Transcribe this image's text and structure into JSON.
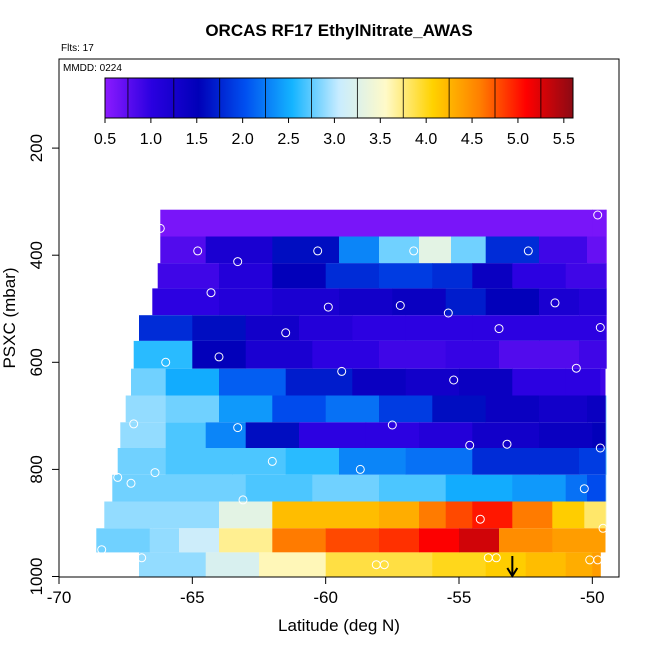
{
  "chart_data": {
    "type": "heatmap",
    "title": "ORCAS RF17 EthylNitrate_AWAS",
    "flights_label": "Flts: 17",
    "date_label": "MMDD: 0224",
    "xlabel": "Latitude (deg N)",
    "ylabel": "PSXC (mbar)",
    "xlim": [
      -70,
      -49
    ],
    "ylim": [
      1000,
      0
    ],
    "x_ticks": [
      -70,
      -65,
      -60,
      -55,
      -50
    ],
    "x_tick_labels": [
      "-70",
      "-65",
      "-60",
      "-55",
      "-50"
    ],
    "y_ticks": [
      200,
      400,
      600,
      800,
      1000
    ],
    "y_tick_labels": [
      "200",
      "400",
      "600",
      "800",
      "1000"
    ],
    "colorbar": {
      "min": 0.5,
      "max": 5.6,
      "ticks": [
        0.5,
        1.0,
        1.5,
        2.0,
        2.5,
        3.0,
        3.5,
        4.0,
        4.5,
        5.0,
        5.5
      ],
      "tick_labels": [
        "0.5",
        "1.0",
        "1.5",
        "2.0",
        "2.5",
        "3.0",
        "3.5",
        "4.0",
        "4.5",
        "5.0",
        "5.5"
      ],
      "colors": [
        "#8c1aff",
        "#2a00e0",
        "#0000b8",
        "#0050f0",
        "#14b4ff",
        "#c8ecff",
        "#fffac8",
        "#ffd200",
        "#ff8000",
        "#ff0000",
        "#8c0a14"
      ]
    },
    "layers": [
      {
        "p_top": 315,
        "p_bot": 365,
        "cells": [
          [
            -66.2,
            0.6
          ],
          [
            -50,
            0.6
          ],
          [
            -49.5,
            0.6
          ]
        ]
      },
      {
        "p_top": 365,
        "p_bot": 415,
        "cells": [
          [
            -66.2,
            0.8
          ],
          [
            -64.5,
            1.2
          ],
          [
            -62,
            1.6
          ],
          [
            -59.5,
            2.3
          ],
          [
            -58,
            2.8
          ],
          [
            -56.5,
            3.3
          ],
          [
            -55.3,
            2.8
          ],
          [
            -54,
            1.8
          ],
          [
            -52,
            0.9
          ],
          [
            -50.2,
            0.7
          ],
          [
            -49.5,
            0.6
          ]
        ]
      },
      {
        "p_top": 415,
        "p_bot": 462,
        "cells": [
          [
            -66.3,
            0.9
          ],
          [
            -64,
            1.1
          ],
          [
            -62,
            1.5
          ],
          [
            -60,
            1.8
          ],
          [
            -58,
            1.9
          ],
          [
            -56,
            1.8
          ],
          [
            -54.5,
            1.4
          ],
          [
            -53,
            1.0
          ],
          [
            -51,
            0.9
          ],
          [
            -49.5,
            0.8
          ]
        ]
      },
      {
        "p_top": 462,
        "p_bot": 512,
        "cells": [
          [
            -66.5,
            1.0
          ],
          [
            -64,
            1.1
          ],
          [
            -62,
            1.2
          ],
          [
            -59.5,
            1.3
          ],
          [
            -57.5,
            1.4
          ],
          [
            -55.5,
            1.7
          ],
          [
            -54,
            1.5
          ],
          [
            -52,
            1.2
          ],
          [
            -50.5,
            1.1
          ],
          [
            -49.5,
            1.0
          ]
        ]
      },
      {
        "p_top": 512,
        "p_bot": 560,
        "cells": [
          [
            -67,
            1.8
          ],
          [
            -65,
            1.6
          ],
          [
            -63,
            1.3
          ],
          [
            -61,
            1.1
          ],
          [
            -59,
            1.0
          ],
          [
            -57,
            1.0
          ],
          [
            -54.5,
            1.0
          ],
          [
            -52,
            1.0
          ],
          [
            -50.5,
            1.0
          ],
          [
            -49.5,
            0.9
          ]
        ]
      },
      {
        "p_top": 560,
        "p_bot": 612,
        "cells": [
          [
            -67.2,
            2.6
          ],
          [
            -65,
            1.5
          ],
          [
            -63,
            1.2
          ],
          [
            -60.5,
            1.0
          ],
          [
            -58,
            0.9
          ],
          [
            -55.5,
            0.95
          ],
          [
            -53.5,
            0.8
          ],
          [
            -52,
            0.8
          ],
          [
            -50.5,
            0.9
          ],
          [
            -49.5,
            0.9
          ]
        ]
      },
      {
        "p_top": 612,
        "p_bot": 662,
        "cells": [
          [
            -67.3,
            2.8
          ],
          [
            -66,
            2.5
          ],
          [
            -64,
            2.1
          ],
          [
            -61.5,
            1.7
          ],
          [
            -59,
            1.4
          ],
          [
            -57,
            1.3
          ],
          [
            -55,
            1.4
          ],
          [
            -53,
            1.0
          ],
          [
            -51,
            1.0
          ],
          [
            -49.7,
            0.9
          ]
        ]
      },
      {
        "p_top": 662,
        "p_bot": 712,
        "cells": [
          [
            -67.5,
            2.9
          ],
          [
            -66,
            2.8
          ],
          [
            -64,
            2.4
          ],
          [
            -62,
            2.0
          ],
          [
            -60,
            2.2
          ],
          [
            -58,
            1.9
          ],
          [
            -56,
            1.6
          ],
          [
            -54,
            1.4
          ],
          [
            -52,
            1.3
          ],
          [
            -50.2,
            1.4
          ],
          [
            -49.5,
            2.9
          ]
        ]
      },
      {
        "p_top": 712,
        "p_bot": 760,
        "cells": [
          [
            -67.7,
            2.9
          ],
          [
            -66,
            2.7
          ],
          [
            -64.5,
            2.3
          ],
          [
            -63,
            1.6
          ],
          [
            -61,
            1.0
          ],
          [
            -58.5,
            1.0
          ],
          [
            -56.5,
            1.1
          ],
          [
            -54.5,
            1.3
          ],
          [
            -52,
            1.4
          ],
          [
            -50,
            1.5
          ],
          [
            -49.5,
            2.9
          ]
        ]
      },
      {
        "p_top": 760,
        "p_bot": 810,
        "cells": [
          [
            -67.8,
            2.8
          ],
          [
            -66,
            2.7
          ],
          [
            -63.5,
            2.7
          ],
          [
            -61.5,
            2.6
          ],
          [
            -59.5,
            2.3
          ],
          [
            -57,
            2.2
          ],
          [
            -54.5,
            1.8
          ],
          [
            -52,
            1.8
          ],
          [
            -50.5,
            1.9
          ],
          [
            -49.5,
            2.8
          ]
        ]
      },
      {
        "p_top": 810,
        "p_bot": 860,
        "cells": [
          [
            -68,
            2.8
          ],
          [
            -66,
            2.8
          ],
          [
            -63,
            2.7
          ],
          [
            -60.5,
            2.8
          ],
          [
            -58,
            2.7
          ],
          [
            -55.5,
            2.5
          ],
          [
            -53,
            2.4
          ],
          [
            -51,
            2.2
          ],
          [
            -50.2,
            2.0
          ],
          [
            -49.5,
            3.0
          ]
        ]
      },
      {
        "p_top": 860,
        "p_bot": 910,
        "cells": [
          [
            -68.3,
            2.9
          ],
          [
            -66.5,
            2.9
          ],
          [
            -64,
            3.3
          ],
          [
            -62,
            4.2
          ],
          [
            -60,
            4.2
          ],
          [
            -58,
            4.3
          ],
          [
            -56.5,
            4.6
          ],
          [
            -55.5,
            4.8
          ],
          [
            -54.5,
            5.0
          ],
          [
            -53,
            4.6
          ],
          [
            -51.5,
            4.1
          ],
          [
            -50.3,
            3.8
          ],
          [
            -49.5,
            3.5
          ]
        ]
      },
      {
        "p_top": 910,
        "p_bot": 955,
        "cells": [
          [
            -68.6,
            2.8
          ],
          [
            -66.6,
            2.9
          ],
          [
            -65.5,
            3.1
          ],
          [
            -64,
            3.7
          ],
          [
            -62,
            4.6
          ],
          [
            -60,
            4.8
          ],
          [
            -58,
            4.9
          ],
          [
            -56.5,
            5.1
          ],
          [
            -55,
            5.3
          ],
          [
            -53.5,
            4.5
          ],
          [
            -51.5,
            4.4
          ],
          [
            -49.8,
            4.4
          ]
        ]
      },
      {
        "p_top": 955,
        "p_bot": 1000,
        "cells": [
          [
            -67,
            2.9
          ],
          [
            -64.5,
            3.2
          ],
          [
            -62.5,
            3.6
          ],
          [
            -60,
            3.9
          ],
          [
            -58,
            3.9
          ],
          [
            -56,
            4.0
          ],
          [
            -54,
            4.1
          ],
          [
            -52.5,
            4.2
          ],
          [
            -51,
            4.3
          ],
          [
            -50,
            4.4
          ]
        ]
      }
    ],
    "samples": [
      [
        -49.8,
        325
      ],
      [
        -66.2,
        350
      ],
      [
        -64.8,
        392
      ],
      [
        -63.3,
        412
      ],
      [
        -60.3,
        392
      ],
      [
        -56.7,
        392
      ],
      [
        -52.4,
        392
      ],
      [
        -64.3,
        470
      ],
      [
        -59.9,
        497
      ],
      [
        -57.2,
        494
      ],
      [
        -55.4,
        508
      ],
      [
        -51.4,
        489
      ],
      [
        -61.5,
        545
      ],
      [
        -53.5,
        537
      ],
      [
        -49.7,
        535
      ],
      [
        -66.0,
        600
      ],
      [
        -64.0,
        590
      ],
      [
        -59.4,
        617
      ],
      [
        -55.2,
        633
      ],
      [
        -50.6,
        611
      ],
      [
        -67.2,
        715
      ],
      [
        -63.3,
        722
      ],
      [
        -57.5,
        717
      ],
      [
        -54.6,
        755
      ],
      [
        -53.2,
        753
      ],
      [
        -49.7,
        760
      ],
      [
        -62.0,
        785
      ],
      [
        -58.7,
        800
      ],
      [
        -66.4,
        806
      ],
      [
        -67.8,
        815
      ],
      [
        -67.3,
        826
      ],
      [
        -63.1,
        857
      ],
      [
        -50.3,
        836
      ],
      [
        -49.6,
        910
      ],
      [
        -54.2,
        893
      ],
      [
        -68.4,
        950
      ],
      [
        -66.9,
        965
      ],
      [
        -53.9,
        965
      ],
      [
        -53.6,
        965
      ],
      [
        -58.1,
        978
      ],
      [
        -57.8,
        978
      ],
      [
        -50.1,
        969
      ],
      [
        -49.8,
        969
      ]
    ],
    "arrow_latitude": -53
  }
}
